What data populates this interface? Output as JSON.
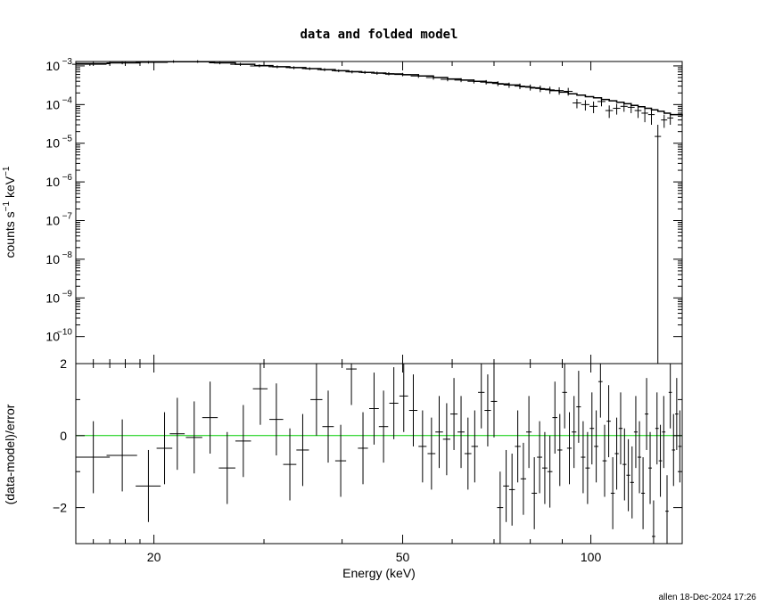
{
  "title": "data and folded model",
  "footer": "allen 18-Dec-2024 17:26",
  "colors": {
    "zero_line": "#00cc00",
    "data": "#000000"
  },
  "chart_data": [
    {
      "type": "scatter",
      "panel": "top",
      "ylabel_main": "counts s",
      "ylabel_exp1": "−1",
      "ylabel_mid": " keV",
      "ylabel_exp2": "−1",
      "xscale": "log",
      "yscale": "log",
      "xlim": [
        15,
        140
      ],
      "ylim": [
        2e-11,
        0.0013
      ],
      "ytick_labels": [
        {
          "value": 0.001,
          "base": "10",
          "exp": "−3"
        },
        {
          "value": 0.0001,
          "base": "10",
          "exp": "−4"
        },
        {
          "value": 1e-05,
          "base": "10",
          "exp": "−5"
        },
        {
          "value": 1e-06,
          "base": "10",
          "exp": "−6"
        },
        {
          "value": 1e-07,
          "base": "10",
          "exp": "−7"
        },
        {
          "value": 1e-08,
          "base": "10",
          "exp": "−8"
        },
        {
          "value": 1e-09,
          "base": "10",
          "exp": "−9"
        },
        {
          "value": 1e-10,
          "base": "10",
          "exp": "−10"
        }
      ],
      "series": [
        {
          "type": "errorbar",
          "x": [
            15.8,
            17.8,
            19.6,
            21.5,
            23.5,
            25.5,
            27.5,
            29.5,
            31.5,
            33.5,
            35.5,
            37.5,
            39.5,
            41.5,
            43.5,
            45.5,
            47.5,
            50.0,
            53.0,
            56.0,
            59.0,
            62.0,
            65.0,
            68.0,
            71.0,
            74.0,
            77.0,
            80.0,
            83.0,
            86.0,
            89.0,
            92.0,
            95.0,
            98.0,
            101.0,
            104.0,
            107.0,
            110.0,
            113.0,
            116.0,
            119.0,
            122.0,
            125.0,
            128.0,
            131.0,
            134.0
          ],
          "xerr": [
            1.0,
            1.0,
            0.9,
            1.0,
            1.0,
            1.0,
            1.0,
            1.0,
            1.0,
            1.0,
            1.0,
            1.0,
            1.0,
            1.0,
            1.0,
            1.0,
            1.0,
            1.5,
            1.5,
            1.5,
            1.5,
            1.5,
            1.5,
            1.5,
            1.5,
            1.5,
            1.5,
            1.5,
            1.5,
            1.5,
            1.5,
            1.5,
            1.5,
            1.5,
            1.5,
            1.5,
            1.5,
            1.5,
            1.5,
            1.5,
            1.5,
            1.5,
            1.5,
            1.5,
            1.5,
            1.5
          ],
          "y": [
            0.0011,
            0.0012,
            0.00125,
            0.0013,
            0.0013,
            0.0012,
            0.0011,
            0.001,
            0.00095,
            0.0009,
            0.00085,
            0.0008,
            0.00075,
            0.0007,
            0.00068,
            0.00065,
            0.00063,
            0.0006,
            0.00055,
            0.0005,
            0.00045,
            0.00043,
            0.0004,
            0.00038,
            0.00035,
            0.00032,
            0.0003,
            0.00028,
            0.00026,
            0.00024,
            0.00023,
            0.00022,
            0.00011,
            0.0001,
            9e-05,
            0.00012,
            7e-05,
            8e-05,
            9e-05,
            8.5e-05,
            7e-05,
            6e-05,
            5.5e-05,
            1.5e-05,
            4e-05,
            4.5e-05
          ],
          "ylo": [
            0.001,
            0.0011,
            0.00115,
            0.0012,
            0.0012,
            0.0011,
            0.001,
            0.00092,
            0.00087,
            0.00082,
            0.00078,
            0.00073,
            0.00069,
            0.00064,
            0.00062,
            0.00059,
            0.00057,
            0.00054,
            0.00049,
            0.00044,
            0.0004,
            0.00038,
            0.00035,
            0.00033,
            0.0003,
            0.00027,
            0.00025,
            0.00023,
            0.00021,
            0.00019,
            0.00018,
            0.00017,
            8e-05,
            7e-05,
            6e-05,
            9e-05,
            4.5e-05,
            5.5e-05,
            6.5e-05,
            6e-05,
            4.5e-05,
            3.5e-05,
            3e-05,
            2e-11,
            2.5e-05,
            3e-05
          ],
          "yhi": [
            0.0012,
            0.0013,
            0.00135,
            0.0014,
            0.0014,
            0.0013,
            0.0012,
            0.0011,
            0.00103,
            0.00098,
            0.00092,
            0.00087,
            0.00081,
            0.00076,
            0.00074,
            0.00071,
            0.00069,
            0.00066,
            0.00061,
            0.00056,
            0.0005,
            0.00048,
            0.00045,
            0.00043,
            0.0004,
            0.00037,
            0.00035,
            0.00033,
            0.00031,
            0.00029,
            0.00028,
            0.00027,
            0.00014,
            0.00013,
            0.00012,
            0.00015,
            9.5e-05,
            0.000105,
            0.000115,
            0.00011,
            9.5e-05,
            8.5e-05,
            8e-05,
            3e-05,
            5.5e-05,
            6e-05
          ]
        },
        {
          "type": "model-step",
          "x": [
            15,
            17,
            19,
            21,
            23,
            25,
            27,
            29,
            31,
            33,
            35,
            37,
            39,
            41,
            43,
            45,
            47,
            50,
            53,
            56,
            59,
            62,
            65,
            68,
            71,
            74,
            77,
            80,
            83,
            86,
            89,
            92,
            95,
            98,
            101,
            104,
            107,
            110,
            113,
            116,
            119,
            122,
            125,
            128,
            131,
            134,
            140
          ],
          "y": [
            0.00115,
            0.0012,
            0.00125,
            0.00128,
            0.00128,
            0.0012,
            0.0011,
            0.00102,
            0.00095,
            0.0009,
            0.00085,
            0.0008,
            0.00075,
            0.00071,
            0.00068,
            0.00065,
            0.00062,
            0.00059,
            0.00055,
            0.0005,
            0.00046,
            0.00043,
            0.0004,
            0.00037,
            0.00034,
            0.00032,
            0.00029,
            0.00027,
            0.00025,
            0.00023,
            0.00021,
            0.00019,
            0.000175,
            0.00016,
            0.00015,
            0.000135,
            0.000125,
            0.000115,
            0.000105,
            9.5e-05,
            8.8e-05,
            8e-05,
            7.3e-05,
            6.7e-05,
            6e-05,
            5.5e-05,
            5e-05
          ]
        }
      ]
    },
    {
      "type": "scatter",
      "panel": "bottom",
      "ylabel": "(data-model)/error",
      "xlabel": "Energy (keV)",
      "xscale": "log",
      "xlim": [
        15,
        140
      ],
      "ylim": [
        -3,
        2
      ],
      "yticks": [
        -2,
        0,
        2
      ],
      "ytick_labels": [
        "−2",
        "0",
        "2"
      ],
      "xticks": [
        20,
        50,
        100
      ],
      "xtick_labels": [
        "20",
        "50",
        "100"
      ],
      "zero_line": 0,
      "series": [
        {
          "type": "errorbar",
          "x": [
            16.0,
            17.8,
            19.6,
            20.8,
            21.8,
            23.2,
            24.6,
            26.2,
            27.8,
            29.6,
            31.4,
            33.0,
            34.6,
            36.4,
            38.0,
            39.8,
            41.4,
            43.2,
            45.0,
            46.6,
            48.4,
            50.2,
            52.0,
            53.8,
            55.6,
            57.2,
            58.8,
            60.4,
            62.0,
            63.6,
            65.2,
            66.8,
            68.4,
            70.0,
            71.6,
            73.2,
            74.8,
            76.4,
            78.0,
            79.6,
            81.2,
            82.8,
            84.4,
            86.0,
            87.6,
            89.2,
            90.8,
            92.4,
            94.0,
            95.6,
            97.2,
            98.8,
            100.4,
            102.0,
            103.6,
            105.2,
            106.8,
            108.4,
            110.0,
            111.6,
            113.2,
            114.8,
            116.4,
            118.0,
            119.6,
            121.2,
            122.8,
            124.4,
            126.0,
            127.6,
            129.2,
            130.8,
            132.4,
            134.0,
            135.6,
            137.2,
            138.8
          ],
          "xerr": [
            1.0,
            1.0,
            0.9,
            0.6,
            0.6,
            0.7,
            0.7,
            0.8,
            0.8,
            0.8,
            0.8,
            0.8,
            0.8,
            0.8,
            0.8,
            0.8,
            0.8,
            0.8,
            0.8,
            0.8,
            0.8,
            0.8,
            0.8,
            0.8,
            0.8,
            0.8,
            0.8,
            0.8,
            0.8,
            0.8,
            0.8,
            0.8,
            0.8,
            0.8,
            0.8,
            0.8,
            0.8,
            0.8,
            0.8,
            0.8,
            0.8,
            0.8,
            0.8,
            0.8,
            0.8,
            0.8,
            0.8,
            0.8,
            0.8,
            0.8,
            0.8,
            0.8,
            0.8,
            0.8,
            0.8,
            0.8,
            0.8,
            0.8,
            0.8,
            0.8,
            0.8,
            0.8,
            0.8,
            0.8,
            0.8,
            0.8,
            0.8,
            0.8,
            0.8,
            0.8,
            0.8,
            0.8,
            0.8,
            0.8,
            0.8,
            0.8,
            0.8
          ],
          "y": [
            -0.6,
            -0.55,
            -1.4,
            -0.35,
            0.05,
            -0.05,
            0.5,
            -0.9,
            -0.15,
            1.3,
            0.45,
            -0.8,
            -0.4,
            1.0,
            0.25,
            -0.7,
            1.85,
            -0.35,
            0.75,
            0.25,
            0.9,
            1.1,
            0.7,
            -0.3,
            -0.5,
            0.1,
            -0.1,
            0.6,
            0.1,
            -0.5,
            -0.3,
            1.2,
            0.7,
            0.95,
            -2.0,
            -1.4,
            -1.5,
            -0.3,
            -1.2,
            0.1,
            -1.6,
            -0.6,
            -0.9,
            -1.0,
            0.5,
            -0.4,
            1.2,
            -0.35,
            0.1,
            0.8,
            -0.6,
            -0.9,
            0.2,
            -0.3,
            1.5,
            -0.7,
            0.4,
            -1.6,
            -0.5,
            0.2,
            -0.8,
            -1.1,
            -1.3,
            0.1,
            -0.6,
            -1.6,
            0.6,
            -0.9,
            -2.8,
            0.2,
            -0.7,
            0.1,
            -2.1,
            1.2,
            -0.4,
            0.6,
            -0.3
          ],
          "yerr": [
            1.0,
            1.0,
            1.0,
            1.0,
            1.0,
            1.0,
            1.0,
            1.0,
            1.0,
            1.0,
            1.0,
            1.0,
            1.0,
            1.0,
            1.0,
            1.0,
            1.0,
            1.0,
            1.0,
            1.0,
            1.0,
            1.0,
            1.0,
            1.0,
            1.0,
            1.0,
            1.0,
            1.0,
            1.0,
            1.0,
            1.0,
            1.0,
            1.0,
            1.0,
            1.0,
            1.0,
            1.0,
            1.0,
            1.0,
            1.0,
            1.0,
            1.0,
            1.0,
            1.0,
            1.0,
            1.0,
            1.0,
            1.0,
            1.0,
            1.0,
            1.0,
            1.0,
            1.0,
            1.0,
            1.0,
            1.0,
            1.0,
            1.0,
            1.0,
            1.0,
            1.0,
            1.0,
            1.0,
            1.0,
            1.0,
            1.0,
            1.0,
            1.0,
            1.0,
            1.0,
            1.0,
            1.0,
            1.0,
            1.0,
            1.0,
            1.0,
            1.0
          ]
        }
      ]
    }
  ]
}
